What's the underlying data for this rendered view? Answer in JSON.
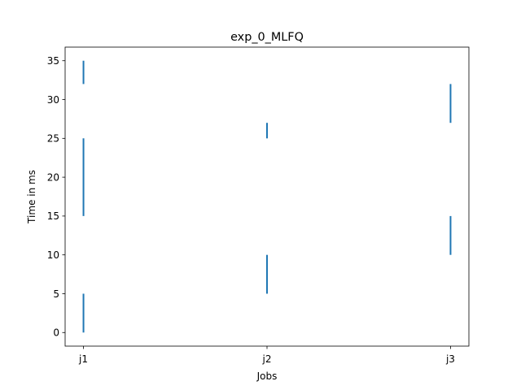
{
  "chart_data": {
    "type": "bar",
    "title": "exp_0_MLFQ",
    "xlabel": "Jobs",
    "ylabel": "Time in ms",
    "categories": [
      "j1",
      "j2",
      "j3"
    ],
    "ylim": [
      -1.75,
      36.75
    ],
    "yticks": [
      0,
      5,
      10,
      15,
      20,
      25,
      30,
      35
    ],
    "ytick_labels": [
      "0",
      "5",
      "10",
      "15",
      "20",
      "25",
      "30",
      "35"
    ],
    "grid": false,
    "legend": "none",
    "intervals": [
      {
        "job": "j1",
        "start": 0,
        "end": 5
      },
      {
        "job": "j1",
        "start": 15,
        "end": 25
      },
      {
        "job": "j1",
        "start": 32,
        "end": 35
      },
      {
        "job": "j2",
        "start": 5,
        "end": 10
      },
      {
        "job": "j2",
        "start": 25,
        "end": 27
      },
      {
        "job": "j3",
        "start": 10,
        "end": 15
      },
      {
        "job": "j3",
        "start": 27,
        "end": 32
      }
    ],
    "color": "#1f77b4"
  }
}
